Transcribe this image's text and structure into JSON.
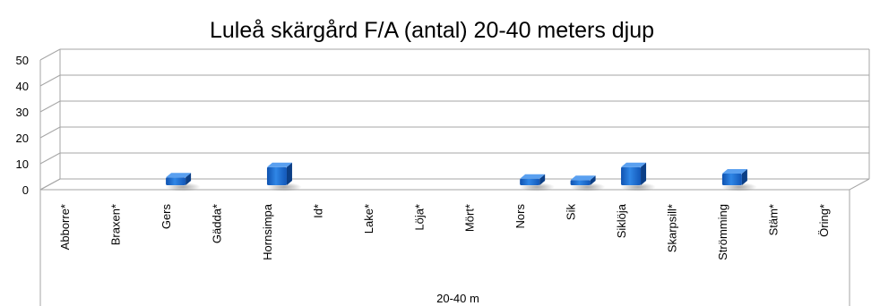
{
  "chart_data": {
    "type": "bar",
    "title": "Luleå skärgård F/A (antal) 20-40 meters djup",
    "xlabel": "20-40 m",
    "ylabel": "",
    "ylim": [
      0,
      50
    ],
    "yticks": [
      0,
      10,
      20,
      30,
      40,
      50
    ],
    "grid": true,
    "style": "3d-column",
    "categories": [
      "Abborre*",
      "Braxen*",
      "Gers",
      "Gädda*",
      "Hornsimpa",
      "Id*",
      "Lake*",
      "Löja*",
      "Mört*",
      "Nors",
      "Sik",
      "Siklöja",
      "Skarpsill*",
      "Strömming",
      "Stäm*",
      "Öring*"
    ],
    "series": [
      {
        "values": [
          0,
          0,
          3,
          0,
          7,
          0,
          0,
          0,
          0,
          2.5,
          2,
          7,
          0,
          4.5,
          0,
          0
        ]
      }
    ],
    "colors": {
      "bar": "#1f6fd0",
      "bar_top": "#5aa0f0",
      "bar_side": "#0c3f86",
      "grid": "#a6a6a6"
    }
  }
}
